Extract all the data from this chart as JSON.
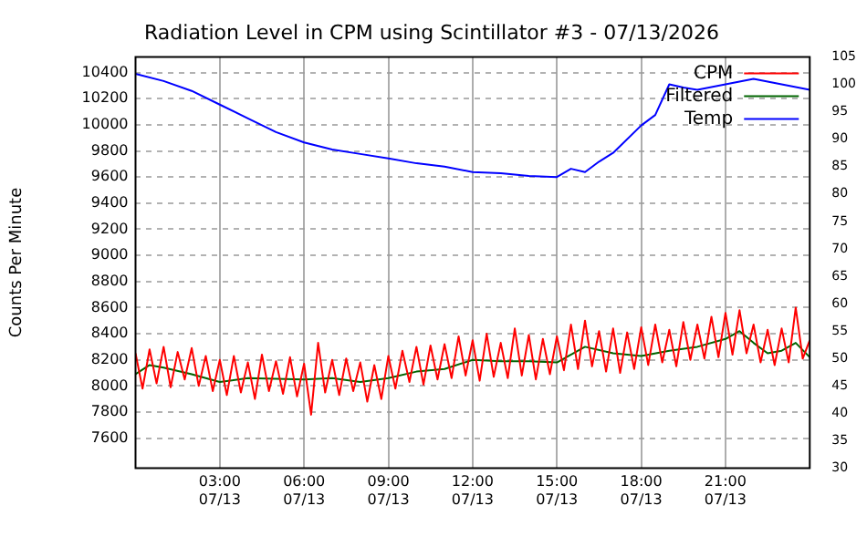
{
  "chart_data": {
    "type": "line",
    "title": "Radiation Level in CPM using Scintillator #3 - 07/13/2026",
    "ylabel": "Counts Per Minute",
    "grid": true,
    "legend": "top right",
    "marker": "none",
    "line_style": "solid",
    "xlim": [
      "2026-07-13T00:00",
      "2026-07-14T00:00"
    ],
    "xticks": [
      {
        "value": "2026-07-13T03:00",
        "label": "03:00\n07/13"
      },
      {
        "value": "2026-07-13T06:00",
        "label": "06:00\n07/13"
      },
      {
        "value": "2026-07-13T09:00",
        "label": "09:00\n07/13"
      },
      {
        "value": "2026-07-13T12:00",
        "label": "12:00\n07/13"
      },
      {
        "value": "2026-07-13T15:00",
        "label": "15:00\n07/13"
      },
      {
        "value": "2026-07-13T18:00",
        "label": "18:00\n07/13"
      },
      {
        "value": "2026-07-13T21:00",
        "label": "21:00\n07/13"
      }
    ],
    "ylim": [
      7370,
      10520
    ],
    "yticks": [
      7600,
      7800,
      8000,
      8200,
      8400,
      8600,
      8800,
      9000,
      9200,
      9400,
      9600,
      9800,
      10000,
      10200,
      10400
    ],
    "y2lim": [
      30,
      105
    ],
    "y2ticks": [
      30,
      35,
      40,
      45,
      50,
      55,
      60,
      65,
      70,
      75,
      80,
      85,
      90,
      95,
      100,
      105
    ],
    "x": [
      "2026-07-13T00:00",
      "2026-07-13T00:15",
      "2026-07-13T00:30",
      "2026-07-13T00:45",
      "2026-07-13T01:00",
      "2026-07-13T01:15",
      "2026-07-13T01:30",
      "2026-07-13T01:45",
      "2026-07-13T02:00",
      "2026-07-13T02:15",
      "2026-07-13T02:30",
      "2026-07-13T02:45",
      "2026-07-13T03:00",
      "2026-07-13T03:15",
      "2026-07-13T03:30",
      "2026-07-13T03:45",
      "2026-07-13T04:00",
      "2026-07-13T04:15",
      "2026-07-13T04:30",
      "2026-07-13T04:45",
      "2026-07-13T05:00",
      "2026-07-13T05:15",
      "2026-07-13T05:30",
      "2026-07-13T05:45",
      "2026-07-13T06:00",
      "2026-07-13T06:15",
      "2026-07-13T06:30",
      "2026-07-13T06:45",
      "2026-07-13T07:00",
      "2026-07-13T07:15",
      "2026-07-13T07:30",
      "2026-07-13T07:45",
      "2026-07-13T08:00",
      "2026-07-13T08:15",
      "2026-07-13T08:30",
      "2026-07-13T08:45",
      "2026-07-13T09:00",
      "2026-07-13T09:15",
      "2026-07-13T09:30",
      "2026-07-13T09:45",
      "2026-07-13T10:00",
      "2026-07-13T10:15",
      "2026-07-13T10:30",
      "2026-07-13T10:45",
      "2026-07-13T11:00",
      "2026-07-13T11:15",
      "2026-07-13T11:30",
      "2026-07-13T11:45",
      "2026-07-13T12:00",
      "2026-07-13T12:15",
      "2026-07-13T12:30",
      "2026-07-13T12:45",
      "2026-07-13T13:00",
      "2026-07-13T13:15",
      "2026-07-13T13:30",
      "2026-07-13T13:45",
      "2026-07-13T14:00",
      "2026-07-13T14:15",
      "2026-07-13T14:30",
      "2026-07-13T14:45",
      "2026-07-13T15:00",
      "2026-07-13T15:15",
      "2026-07-13T15:30",
      "2026-07-13T15:45",
      "2026-07-13T16:00",
      "2026-07-13T16:15",
      "2026-07-13T16:30",
      "2026-07-13T16:45",
      "2026-07-13T17:00",
      "2026-07-13T17:15",
      "2026-07-13T17:30",
      "2026-07-13T17:45",
      "2026-07-13T18:00",
      "2026-07-13T18:15",
      "2026-07-13T18:30",
      "2026-07-13T18:45",
      "2026-07-13T19:00",
      "2026-07-13T19:15",
      "2026-07-13T19:30",
      "2026-07-13T19:45",
      "2026-07-13T20:00",
      "2026-07-13T20:15",
      "2026-07-13T20:30",
      "2026-07-13T20:45",
      "2026-07-13T21:00",
      "2026-07-13T21:15",
      "2026-07-13T21:30",
      "2026-07-13T21:45",
      "2026-07-13T22:00",
      "2026-07-13T22:15",
      "2026-07-13T22:30",
      "2026-07-13T22:45",
      "2026-07-13T23:00",
      "2026-07-13T23:15",
      "2026-07-13T23:30",
      "2026-07-13T23:45",
      "2026-07-14T00:00"
    ],
    "series": [
      {
        "name": "CPM",
        "color": "#ff0000",
        "values": [
          8250,
          7980,
          8280,
          8020,
          8300,
          7990,
          8260,
          8050,
          8290,
          8000,
          8230,
          7960,
          8200,
          7930,
          8230,
          7950,
          8180,
          7900,
          8240,
          7960,
          8190,
          7940,
          8220,
          7920,
          8170,
          7780,
          8330,
          7950,
          8200,
          7930,
          8210,
          7960,
          8180,
          7880,
          8160,
          7900,
          8230,
          7980,
          8270,
          8030,
          8300,
          8010,
          8310,
          8050,
          8320,
          8060,
          8380,
          8080,
          8350,
          8040,
          8400,
          8070,
          8330,
          8060,
          8440,
          8080,
          8390,
          8050,
          8360,
          8090,
          8380,
          8120,
          8470,
          8130,
          8500,
          8150,
          8420,
          8110,
          8440,
          8100,
          8410,
          8130,
          8450,
          8160,
          8470,
          8180,
          8430,
          8150,
          8490,
          8200,
          8470,
          8210,
          8530,
          8220,
          8560,
          8240,
          8580,
          8250,
          8470,
          8180,
          8430,
          8160,
          8440,
          8180,
          8600,
          8210,
          8350
        ]
      },
      {
        "name": "Filtered",
        "color": "#006400",
        "x": [
          "2026-07-13T00:00",
          "2026-07-13T00:30",
          "2026-07-13T01:00",
          "2026-07-13T02:00",
          "2026-07-13T03:00",
          "2026-07-13T04:00",
          "2026-07-13T06:00",
          "2026-07-13T07:00",
          "2026-07-13T08:00",
          "2026-07-13T09:00",
          "2026-07-13T10:00",
          "2026-07-13T11:00",
          "2026-07-13T12:00",
          "2026-07-13T13:00",
          "2026-07-13T14:00",
          "2026-07-13T15:00",
          "2026-07-13T16:00",
          "2026-07-13T17:00",
          "2026-07-13T18:00",
          "2026-07-13T19:00",
          "2026-07-13T20:00",
          "2026-07-13T21:00",
          "2026-07-13T21:30",
          "2026-07-13T22:00",
          "2026-07-13T22:30",
          "2026-07-13T23:00",
          "2026-07-13T23:30",
          "2026-07-14T00:00"
        ],
        "values": [
          8090,
          8160,
          8140,
          8090,
          8030,
          8060,
          8050,
          8060,
          8030,
          8060,
          8110,
          8130,
          8200,
          8190,
          8190,
          8180,
          8300,
          8250,
          8230,
          8270,
          8300,
          8360,
          8420,
          8330,
          8250,
          8270,
          8330,
          8220
        ]
      },
      {
        "name": "Temp",
        "color": "#0000ff",
        "axis": "y2",
        "x": [
          "2026-07-13T00:00",
          "2026-07-13T01:00",
          "2026-07-13T02:00",
          "2026-07-13T03:00",
          "2026-07-13T04:00",
          "2026-07-13T05:00",
          "2026-07-13T06:00",
          "2026-07-13T07:00",
          "2026-07-13T08:00",
          "2026-07-13T09:00",
          "2026-07-13T10:00",
          "2026-07-13T11:00",
          "2026-07-13T12:00",
          "2026-07-13T13:00",
          "2026-07-13T14:00",
          "2026-07-13T15:00",
          "2026-07-13T15:30",
          "2026-07-13T16:00",
          "2026-07-13T16:30",
          "2026-07-13T17:00",
          "2026-07-13T18:00",
          "2026-07-13T18:30",
          "2026-07-13T19:00",
          "2026-07-13T19:30",
          "2026-07-13T20:00",
          "2026-07-13T21:00",
          "2026-07-13T22:00",
          "2026-07-13T23:00",
          "2026-07-14T00:00"
        ],
        "values": [
          101.9,
          100.6,
          98.8,
          96.3,
          93.8,
          91.3,
          89.4,
          88.1,
          87.3,
          86.5,
          85.6,
          85,
          84,
          83.8,
          83.3,
          83.1,
          84.6,
          84,
          85.9,
          87.5,
          92.5,
          94.4,
          100,
          99.4,
          99,
          100,
          101,
          100,
          99
        ]
      }
    ]
  }
}
